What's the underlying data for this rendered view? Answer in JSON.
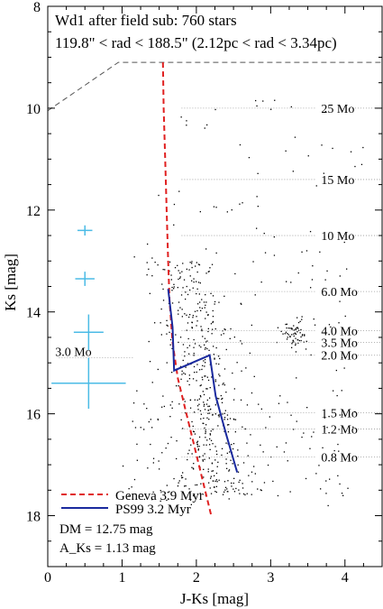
{
  "chart_data": {
    "type": "scatter",
    "title_lines": [
      "Wd1 after field sub: 760 stars",
      "119.8\" < rad < 188.5\" (2.12pc < rad < 3.34pc)"
    ],
    "xlabel": "J-Ks [mag]",
    "ylabel": "Ks [mag]",
    "xlim": [
      0,
      4.5
    ],
    "ylim": [
      8,
      19
    ],
    "y_inverted": true,
    "xticks": [
      0,
      1,
      2,
      3,
      4
    ],
    "yticks": [
      8,
      10,
      12,
      14,
      16,
      18
    ],
    "series": [
      {
        "name": "Geneva 3.9 Myr",
        "kind": "line",
        "color": "#e02020",
        "dash": true,
        "points": [
          [
            1.55,
            9.1
          ],
          [
            1.56,
            10.0
          ],
          [
            1.58,
            11.0
          ],
          [
            1.6,
            12.0
          ],
          [
            1.62,
            13.0
          ],
          [
            1.64,
            13.8
          ],
          [
            1.68,
            14.6
          ],
          [
            1.75,
            15.3
          ],
          [
            1.85,
            15.9
          ],
          [
            1.95,
            16.5
          ],
          [
            2.05,
            17.1
          ],
          [
            2.15,
            17.7
          ],
          [
            2.2,
            18.0
          ]
        ]
      },
      {
        "name": "PS99 3.2 Myr",
        "kind": "line",
        "color": "#1a2a9e",
        "dash": false,
        "points": [
          [
            1.62,
            13.55
          ],
          [
            1.68,
            14.3
          ],
          [
            1.7,
            15.15
          ],
          [
            2.18,
            14.85
          ],
          [
            2.26,
            15.65
          ],
          [
            2.4,
            16.4
          ],
          [
            2.55,
            17.15
          ]
        ]
      }
    ],
    "mass_labels": [
      {
        "text": "25 Mo",
        "ks": 10.0
      },
      {
        "text": "15 Mo",
        "ks": 11.4
      },
      {
        "text": "10 Mo",
        "ks": 12.5
      },
      {
        "text": "6.0 Mo",
        "ks": 13.6
      },
      {
        "text": "4.0 Mo",
        "ks": 14.37
      },
      {
        "text": "3.5 Mo",
        "ks": 14.6
      },
      {
        "text": "2.0 Mo",
        "ks": 14.85
      },
      {
        "text": "1.5 Mo",
        "ks": 15.98
      },
      {
        "text": "1.2 Mo",
        "ks": 16.3
      },
      {
        "text": "0.8 Mo",
        "ks": 16.85
      }
    ],
    "left_mass_label": {
      "text": "3.0 Mo",
      "ks": 14.9
    },
    "error_bars": [
      {
        "jk": 0.5,
        "ks": 12.4,
        "xerr": 0.1,
        "yerr": 0.1
      },
      {
        "jk": 0.5,
        "ks": 13.35,
        "xerr": 0.13,
        "yerr": 0.14
      },
      {
        "jk": 0.55,
        "ks": 14.4,
        "xerr": 0.2,
        "yerr": 0.35
      },
      {
        "jk": 0.55,
        "ks": 15.4,
        "xerr": 0.5,
        "yerr": 0.5
      }
    ],
    "completeness_line": {
      "points": [
        [
          0.0,
          10.05
        ],
        [
          0.95,
          9.1
        ],
        [
          4.5,
          9.1
        ]
      ]
    },
    "grid": false,
    "legend_position": "bottom-left"
  },
  "annotations": {
    "dm": "DM = 12.75 mag",
    "aks": "A_Ks = 1.13 mag"
  },
  "colors": {
    "error_bar": "#4bbbe6",
    "star": "#000000",
    "guide": "#999999"
  }
}
